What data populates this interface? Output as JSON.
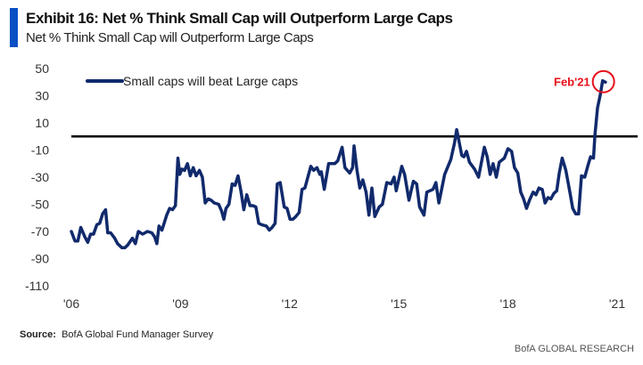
{
  "header": {
    "title": "Exhibit 16: Net % Think Small Cap will Outperform Large Caps",
    "subtitle": "Net % Think Small Cap will Outperform Large Caps",
    "accent_color": "#0a4fc4"
  },
  "footer": {
    "source_label": "Source:",
    "source_text": "BofA Global Fund Manager Survey",
    "brand": "BofA GLOBAL RESEARCH"
  },
  "chart_data": {
    "type": "line",
    "title": "",
    "xlabel": "",
    "ylabel": "",
    "xlim": [
      2006,
      2021
    ],
    "ylim": [
      -110,
      50
    ],
    "grid": false,
    "legend_position": "top-left",
    "x_ticks": [
      {
        "value": 2006,
        "label": "'06"
      },
      {
        "value": 2009,
        "label": "'09"
      },
      {
        "value": 2012,
        "label": "'12"
      },
      {
        "value": 2015,
        "label": "'15"
      },
      {
        "value": 2018,
        "label": "'18"
      },
      {
        "value": 2021,
        "label": "'21"
      }
    ],
    "y_ticks": [
      50,
      30,
      10,
      -10,
      -30,
      -50,
      -70,
      -90,
      -110
    ],
    "reference_line": {
      "y": 0,
      "color": "#000000"
    },
    "annotation": {
      "label": "Feb'21",
      "color": "#e8101a"
    },
    "series": [
      {
        "name": "Small caps will beat Large caps",
        "color": "#112a6c",
        "x": [
          2006.0,
          2006.1,
          2006.18,
          2006.26,
          2006.37,
          2006.45,
          2006.53,
          2006.61,
          2006.7,
          2006.78,
          2006.86,
          2006.94,
          2007.0,
          2007.08,
          2007.19,
          2007.27,
          2007.39,
          2007.47,
          2007.55,
          2007.68,
          2007.76,
          2007.84,
          2007.96,
          2008.09,
          2008.21,
          2008.29,
          2008.35,
          2008.41,
          2008.49,
          2008.62,
          2008.7,
          2008.78,
          2008.86,
          2008.93,
          2008.98,
          2009.04,
          2009.11,
          2009.19,
          2009.27,
          2009.35,
          2009.43,
          2009.52,
          2009.6,
          2009.68,
          2009.76,
          2009.84,
          2009.93,
          2010.05,
          2010.13,
          2010.19,
          2010.25,
          2010.33,
          2010.42,
          2010.5,
          2010.58,
          2010.66,
          2010.74,
          2010.82,
          2010.91,
          2010.99,
          2011.07,
          2011.15,
          2011.23,
          2011.36,
          2011.44,
          2011.52,
          2011.6,
          2011.66,
          2011.74,
          2011.85,
          2011.93,
          2012.01,
          2012.09,
          2012.17,
          2012.26,
          2012.34,
          2012.42,
          2012.5,
          2012.58,
          2012.66,
          2012.75,
          2012.83,
          2012.87,
          2012.95,
          2013.07,
          2013.24,
          2013.32,
          2013.44,
          2013.52,
          2013.65,
          2013.73,
          2013.77,
          2013.85,
          2013.93,
          2014.01,
          2014.1,
          2014.18,
          2014.26,
          2014.34,
          2014.46,
          2014.55,
          2014.67,
          2014.79,
          2014.87,
          2014.93,
          2015.08,
          2015.16,
          2015.28,
          2015.4,
          2015.49,
          2015.57,
          2015.69,
          2015.77,
          2015.94,
          2016.02,
          2016.1,
          2016.26,
          2016.43,
          2016.53,
          2016.59,
          2016.65,
          2016.73,
          2016.79,
          2016.86,
          2016.94,
          2017.08,
          2017.19,
          2017.35,
          2017.43,
          2017.51,
          2017.59,
          2017.68,
          2017.76,
          2017.9,
          2018.0,
          2018.1,
          2018.18,
          2018.27,
          2018.35,
          2018.43,
          2018.51,
          2018.59,
          2018.69,
          2018.77,
          2018.85,
          2018.94,
          2019.02,
          2019.1,
          2019.18,
          2019.26,
          2019.34,
          2019.41,
          2019.49,
          2019.59,
          2019.7,
          2019.78,
          2019.86,
          2019.94,
          2020.02,
          2020.11,
          2020.19,
          2020.27,
          2020.35,
          2020.39,
          2020.46,
          2020.54,
          2020.6,
          2020.68
        ],
        "values": [
          -70,
          -77,
          -77,
          -67,
          -74,
          -78,
          -72,
          -72,
          -65,
          -64,
          -57,
          -54,
          -71,
          -71,
          -75,
          -79,
          -82,
          -82,
          -80,
          -75,
          -79,
          -70,
          -72,
          -70,
          -71,
          -74,
          -79,
          -66,
          -69,
          -58,
          -53,
          -54,
          -51,
          -16,
          -28,
          -24,
          -25,
          -20,
          -29,
          -23,
          -29,
          -25,
          -30,
          -49,
          -46,
          -47,
          -49,
          -50,
          -55,
          -61,
          -53,
          -50,
          -35,
          -36,
          -29,
          -40,
          -54,
          -43,
          -51,
          -51,
          -52,
          -64,
          -65,
          -66,
          -69,
          -67,
          -64,
          -35,
          -34,
          -52,
          -53,
          -61,
          -61,
          -59,
          -56,
          -39,
          -38,
          -30,
          -22,
          -25,
          -23,
          -28,
          -26,
          -39,
          -20,
          -20,
          -18,
          -8,
          -23,
          -27,
          -23,
          -7,
          -25,
          -38,
          -32,
          -41,
          -58,
          -38,
          -59,
          -52,
          -50,
          -34,
          -35,
          -30,
          -40,
          -22,
          -28,
          -47,
          -33,
          -35,
          -52,
          -58,
          -41,
          -39,
          -34,
          -49,
          -28,
          -17,
          -5,
          5,
          -3,
          -14,
          -15,
          -11,
          -19,
          -24,
          -30,
          -8,
          -15,
          -28,
          -20,
          -30,
          -19,
          -16,
          -9,
          -11,
          -23,
          -27,
          -41,
          -46,
          -53,
          -47,
          -41,
          -43,
          -38,
          -39,
          -49,
          -45,
          -46,
          -42,
          -40,
          -27,
          -16,
          -25,
          -41,
          -53,
          -57,
          -57,
          -29,
          -30,
          -22,
          -15,
          -16,
          1,
          21,
          31,
          41,
          40
        ]
      }
    ]
  }
}
